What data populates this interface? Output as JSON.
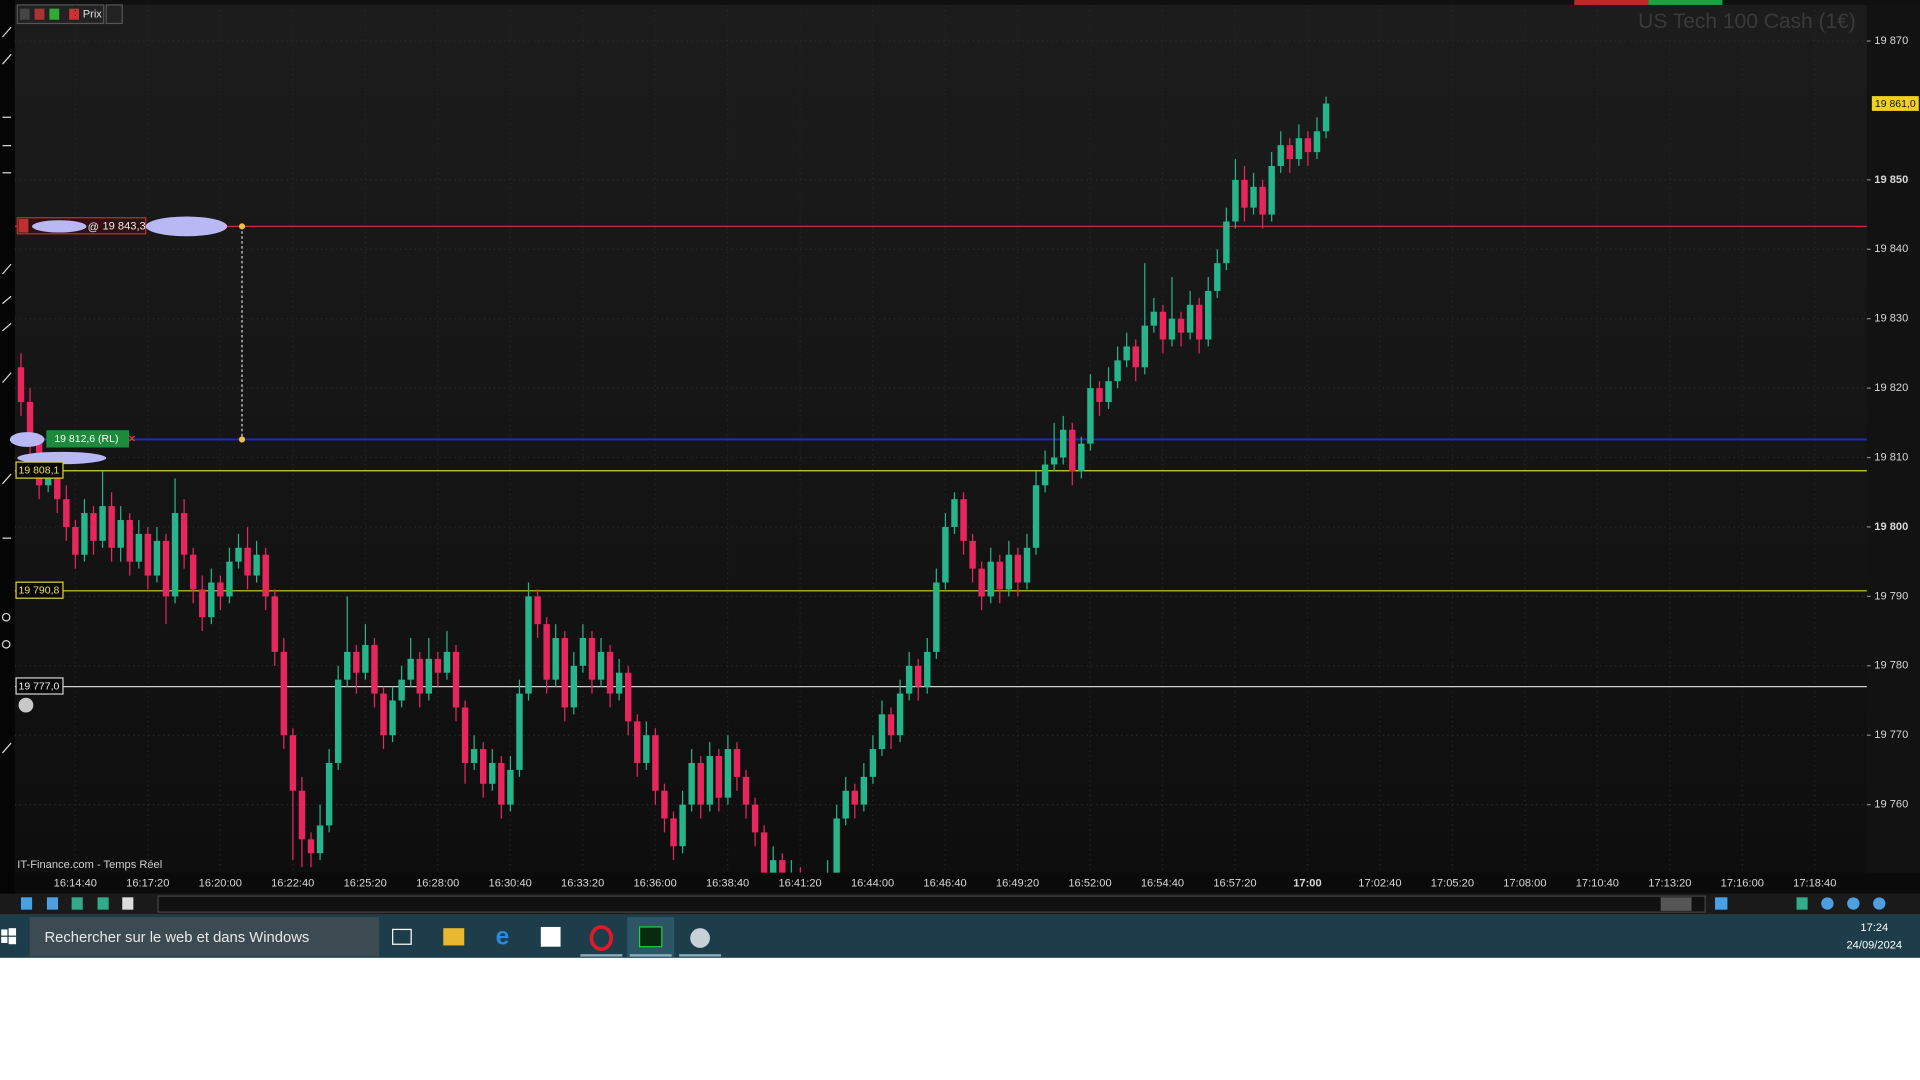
{
  "toolbar": {
    "label": "Prix"
  },
  "taskbar": {
    "search": "Rechercher sur le web et dans Windows",
    "time": "17:24",
    "date": "24/09/2024"
  },
  "chart_data": {
    "type": "candlestick",
    "title": "US Tech 100 Cash (1€)",
    "source": "IT-Finance.com - Temps Réel",
    "order_prefix": "@",
    "up_color": "#26b48a",
    "down_color": "#e8265e",
    "grid": true,
    "ylim": [
      19750.2,
      19875.2
    ],
    "yticks": [
      {
        "value": 19870,
        "label": "19 870"
      },
      {
        "value": 19850,
        "label": "19 850"
      },
      {
        "value": 19840,
        "label": "19 840"
      },
      {
        "value": 19830,
        "label": "19 830"
      },
      {
        "value": 19820,
        "label": "19 820"
      },
      {
        "value": 19810,
        "label": "19 810"
      },
      {
        "value": 19800,
        "label": "19 800"
      },
      {
        "value": 19790,
        "label": "19 790"
      },
      {
        "value": 19780,
        "label": "19 780"
      },
      {
        "value": 19770,
        "label": "19 770"
      },
      {
        "value": 19760,
        "label": "19 760"
      }
    ],
    "xticks": [
      "16:14:40",
      "16:17:20",
      "16:20:00",
      "16:22:40",
      "16:25:20",
      "16:28:00",
      "16:30:40",
      "16:33:20",
      "16:36:00",
      "16:38:40",
      "16:41:20",
      "16:44:00",
      "16:46:40",
      "16:49:20",
      "16:52:00",
      "16:54:40",
      "16:57:20",
      "17:00",
      "17:02:40",
      "17:05:20",
      "17:08:00",
      "17:10:40",
      "17:13:20",
      "17:16:00",
      "17:18:40"
    ],
    "levels": [
      {
        "value": 19843.3,
        "label": "19 843,3",
        "color": "#c0303a"
      },
      {
        "value": 19812.6,
        "label": "19 812,6 (RL)",
        "color": "#1a2ad8"
      },
      {
        "value": 19808.1,
        "label": "19 808,1",
        "color": "#d8d040"
      },
      {
        "value": 19790.8,
        "label": "19 790,8",
        "color": "#d8d040"
      },
      {
        "value": 19777.0,
        "label": "19 777,0",
        "color": "#d0d0d0"
      }
    ],
    "last_price": {
      "value": 19861.0,
      "label": "19 861,0",
      "color": "#f0d020"
    },
    "ohlc": [
      [
        19823,
        19825,
        19816,
        19818
      ],
      [
        19818,
        19820,
        19810,
        19812
      ],
      [
        19812,
        19813,
        19804,
        19806
      ],
      [
        19806,
        19810,
        19805,
        19808
      ],
      [
        19808,
        19809,
        19802,
        19804
      ],
      [
        19804,
        19806,
        19798,
        19800
      ],
      [
        19800,
        19801,
        19794,
        19796
      ],
      [
        19796,
        19804,
        19795,
        19802
      ],
      [
        19802,
        19803,
        19796,
        19798
      ],
      [
        19798,
        19808,
        19797,
        19803
      ],
      [
        19803,
        19805,
        19795,
        19797
      ],
      [
        19797,
        19803,
        19795,
        19801
      ],
      [
        19801,
        19802,
        19793,
        19795
      ],
      [
        19795,
        19801,
        19794,
        19799
      ],
      [
        19799,
        19800,
        19791,
        19793
      ],
      [
        19793,
        19800,
        19792,
        19798
      ],
      [
        19798,
        19799,
        19786,
        19790
      ],
      [
        19790,
        19807,
        19789,
        19802
      ],
      [
        19802,
        19804,
        19794,
        19796
      ],
      [
        19796,
        19797,
        19789,
        19791
      ],
      [
        19791,
        19793,
        19785,
        19787
      ],
      [
        19787,
        19794,
        19786,
        19792
      ],
      [
        19792,
        19793,
        19788,
        19790
      ],
      [
        19790,
        19797,
        19789,
        19795
      ],
      [
        19795,
        19799,
        19794,
        19797
      ],
      [
        19797,
        19800,
        19791,
        19793
      ],
      [
        19793,
        19798,
        19792,
        19796
      ],
      [
        19796,
        19797,
        19788,
        19790
      ],
      [
        19790,
        19791,
        19780,
        19782
      ],
      [
        19782,
        19784,
        19768,
        19770
      ],
      [
        19770,
        19771,
        19752,
        19762
      ],
      [
        19762,
        19764,
        19751,
        19755
      ],
      [
        19755,
        19756,
        19751,
        19753
      ],
      [
        19753,
        19760,
        19752,
        19757
      ],
      [
        19757,
        19768,
        19756,
        19766
      ],
      [
        19766,
        19780,
        19765,
        19778
      ],
      [
        19778,
        19790,
        19777,
        19782
      ],
      [
        19782,
        19783,
        19776,
        19779
      ],
      [
        19779,
        19786,
        19778,
        19783
      ],
      [
        19783,
        19784,
        19774,
        19776
      ],
      [
        19776,
        19777,
        19768,
        19770
      ],
      [
        19770,
        19777,
        19769,
        19775
      ],
      [
        19775,
        19780,
        19774,
        19778
      ],
      [
        19778,
        19784,
        19777,
        19781
      ],
      [
        19781,
        19782,
        19774,
        19776
      ],
      [
        19776,
        19784,
        19775,
        19781
      ],
      [
        19781,
        19782,
        19777,
        19779
      ],
      [
        19779,
        19785,
        19778,
        19782
      ],
      [
        19782,
        19783,
        19772,
        19774
      ],
      [
        19774,
        19775,
        19763,
        19766
      ],
      [
        19766,
        19770,
        19765,
        19768
      ],
      [
        19768,
        19769,
        19761,
        19763
      ],
      [
        19763,
        19768,
        19762,
        19766
      ],
      [
        19766,
        19767,
        19758,
        19760
      ],
      [
        19760,
        19767,
        19759,
        19765
      ],
      [
        19765,
        19778,
        19764,
        19776
      ],
      [
        19776,
        19792,
        19775,
        19790
      ],
      [
        19790,
        19791,
        19784,
        19786
      ],
      [
        19786,
        19787,
        19776,
        19778
      ],
      [
        19778,
        19786,
        19777,
        19784
      ],
      [
        19784,
        19785,
        19772,
        19774
      ],
      [
        19774,
        19782,
        19773,
        19780
      ],
      [
        19780,
        19786,
        19779,
        19784
      ],
      [
        19784,
        19785,
        19776,
        19778
      ],
      [
        19778,
        19784,
        19777,
        19782
      ],
      [
        19782,
        19783,
        19774,
        19776
      ],
      [
        19776,
        19781,
        19775,
        19779
      ],
      [
        19779,
        19780,
        19770,
        19772
      ],
      [
        19772,
        19773,
        19764,
        19766
      ],
      [
        19766,
        19772,
        19765,
        19770
      ],
      [
        19770,
        19771,
        19760,
        19762
      ],
      [
        19762,
        19763,
        19756,
        19758
      ],
      [
        19758,
        19759,
        19752,
        19754
      ],
      [
        19754,
        19762,
        19753,
        19760
      ],
      [
        19760,
        19768,
        19759,
        19766
      ],
      [
        19766,
        19767,
        19758,
        19760
      ],
      [
        19760,
        19769,
        19759,
        19767
      ],
      [
        19767,
        19768,
        19759,
        19761
      ],
      [
        19761,
        19770,
        19760,
        19768
      ],
      [
        19768,
        19769,
        19762,
        19764
      ],
      [
        19764,
        19765,
        19758,
        19760
      ],
      [
        19760,
        19761,
        19754,
        19756
      ],
      [
        19756,
        19757,
        19748,
        19750
      ],
      [
        19750,
        19754,
        19749,
        19752
      ],
      [
        19752,
        19753,
        19747,
        19749
      ],
      [
        19749,
        19752,
        19748,
        19750
      ],
      [
        19750,
        19751,
        19746,
        19748
      ],
      [
        19748,
        19749,
        19744,
        19746
      ],
      [
        19746,
        19749,
        19745,
        19747
      ],
      [
        19747,
        19752,
        19746,
        19750
      ],
      [
        19750,
        19760,
        19749,
        19758
      ],
      [
        19758,
        19764,
        19757,
        19762
      ],
      [
        19762,
        19763,
        19758,
        19760
      ],
      [
        19760,
        19766,
        19759,
        19764
      ],
      [
        19764,
        19770,
        19763,
        19768
      ],
      [
        19768,
        19775,
        19767,
        19773
      ],
      [
        19773,
        19774,
        19768,
        19770
      ],
      [
        19770,
        19778,
        19769,
        19776
      ],
      [
        19776,
        19782,
        19775,
        19780
      ],
      [
        19780,
        19781,
        19775,
        19777
      ],
      [
        19777,
        19784,
        19776,
        19782
      ],
      [
        19782,
        19794,
        19781,
        19792
      ],
      [
        19792,
        19802,
        19791,
        19800
      ],
      [
        19800,
        19805,
        19799,
        19804
      ],
      [
        19804,
        19805,
        19796,
        19798
      ],
      [
        19798,
        19799,
        19792,
        19794
      ],
      [
        19794,
        19795,
        19788,
        19790
      ],
      [
        19790,
        19797,
        19789,
        19795
      ],
      [
        19795,
        19796,
        19789,
        19791
      ],
      [
        19791,
        19798,
        19790,
        19796
      ],
      [
        19796,
        19797,
        19790,
        19792
      ],
      [
        19792,
        19799,
        19791,
        19797
      ],
      [
        19797,
        19808,
        19796,
        19806
      ],
      [
        19806,
        19811,
        19805,
        19809
      ],
      [
        19809,
        19815,
        19808,
        19810
      ],
      [
        19810,
        19816,
        19809,
        19814
      ],
      [
        19814,
        19815,
        19806,
        19808
      ],
      [
        19808,
        19813,
        19807,
        19812
      ],
      [
        19812,
        19822,
        19811,
        19820
      ],
      [
        19820,
        19821,
        19816,
        19818
      ],
      [
        19818,
        19823,
        19817,
        19821
      ],
      [
        19821,
        19826,
        19820,
        19824
      ],
      [
        19824,
        19828,
        19823,
        19826
      ],
      [
        19826,
        19827,
        19821,
        19823
      ],
      [
        19823,
        19838,
        19822,
        19829
      ],
      [
        19829,
        19833,
        19828,
        19831
      ],
      [
        19831,
        19832,
        19825,
        19827
      ],
      [
        19827,
        19836,
        19826,
        19830
      ],
      [
        19830,
        19831,
        19826,
        19828
      ],
      [
        19828,
        19834,
        19827,
        19832
      ],
      [
        19832,
        19833,
        19825,
        19827
      ],
      [
        19827,
        19836,
        19826,
        19834
      ],
      [
        19834,
        19840,
        19833,
        19838
      ],
      [
        19838,
        19846,
        19837,
        19844
      ],
      [
        19844,
        19853,
        19843,
        19850
      ],
      [
        19850,
        19852,
        19844,
        19846
      ],
      [
        19846,
        19851,
        19845,
        19849
      ],
      [
        19849,
        19850,
        19843,
        19845
      ],
      [
        19845,
        19854,
        19844,
        19852
      ],
      [
        19852,
        19857,
        19851,
        19855
      ],
      [
        19855,
        19856,
        19851,
        19853
      ],
      [
        19853,
        19858,
        19852,
        19856
      ],
      [
        19856,
        19857,
        19852,
        19854
      ],
      [
        19854,
        19859,
        19853,
        19857
      ],
      [
        19857,
        19862,
        19856,
        19861
      ]
    ]
  }
}
